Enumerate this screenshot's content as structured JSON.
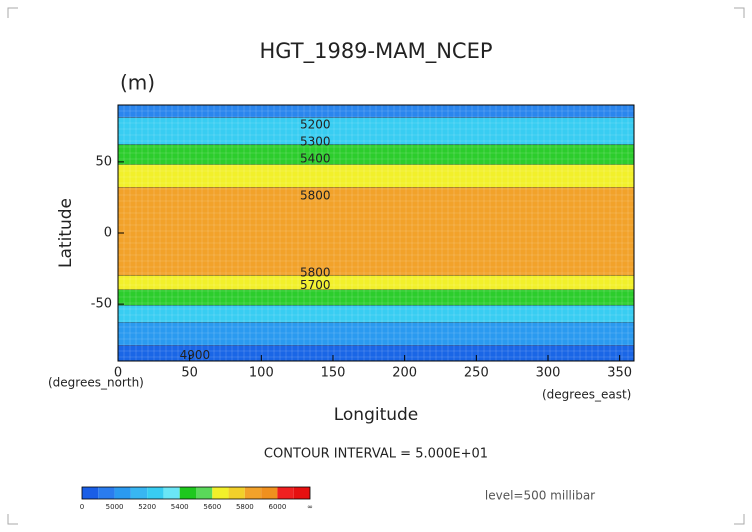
{
  "chart_data": {
    "type": "contour-map",
    "title": "HGT_1989-MAM_NCEP",
    "units": "(m)",
    "xlabel": "Longitude",
    "ylabel": "Latitude",
    "xunits": "(degrees_east)",
    "yunits": "(degrees_north)",
    "xlim": [
      0,
      360
    ],
    "ylim": [
      -90,
      90
    ],
    "xticks": [
      0,
      50,
      100,
      150,
      200,
      250,
      300,
      350
    ],
    "yticks": [
      50,
      0,
      -50
    ],
    "bands": [
      {
        "from": 81,
        "to": 90,
        "color": "#2a86ee"
      },
      {
        "from": 62,
        "to": 81,
        "color": "#38cdf2"
      },
      {
        "from": 48,
        "to": 62,
        "color": "#2ccd2c"
      },
      {
        "from": 32,
        "to": 48,
        "color": "#f2f02a"
      },
      {
        "from": -30,
        "to": 32,
        "color": "#f2a22a"
      },
      {
        "from": -40,
        "to": -30,
        "color": "#f2f02a"
      },
      {
        "from": -51,
        "to": -40,
        "color": "#2ccd2c"
      },
      {
        "from": -63,
        "to": -51,
        "color": "#38cdf2"
      },
      {
        "from": -79,
        "to": -63,
        "color": "#2a9af0"
      },
      {
        "from": -90,
        "to": -79,
        "color": "#1a66e6"
      }
    ],
    "contour_labels": [
      {
        "text": "5200",
        "lon": 127,
        "lat": 76
      },
      {
        "text": "5300",
        "lon": 127,
        "lat": 64
      },
      {
        "text": "5400",
        "lon": 127,
        "lat": 52
      },
      {
        "text": "5800",
        "lon": 127,
        "lat": 26
      },
      {
        "text": "5800",
        "lon": 127,
        "lat": -28
      },
      {
        "text": "5700",
        "lon": 127,
        "lat": -37
      },
      {
        "text": "4900",
        "lon": 43,
        "lat": -86
      }
    ],
    "contour_interval": "CONTOUR INTERVAL = 5.000E+01",
    "level": "level=500 millibar",
    "colorbar": {
      "labels": [
        "0",
        "5000",
        "5200",
        "5400",
        "5600",
        "5800",
        "6000",
        "∞"
      ],
      "colors": [
        "#1a5ee6",
        "#2a7cee",
        "#2a9af0",
        "#38b6f2",
        "#38cdf2",
        "#6ae6f6",
        "#1ec81e",
        "#5ad85a",
        "#f2f02a",
        "#f2d02a",
        "#f2a22a",
        "#f0901e",
        "#f02020",
        "#e61010"
      ]
    }
  }
}
